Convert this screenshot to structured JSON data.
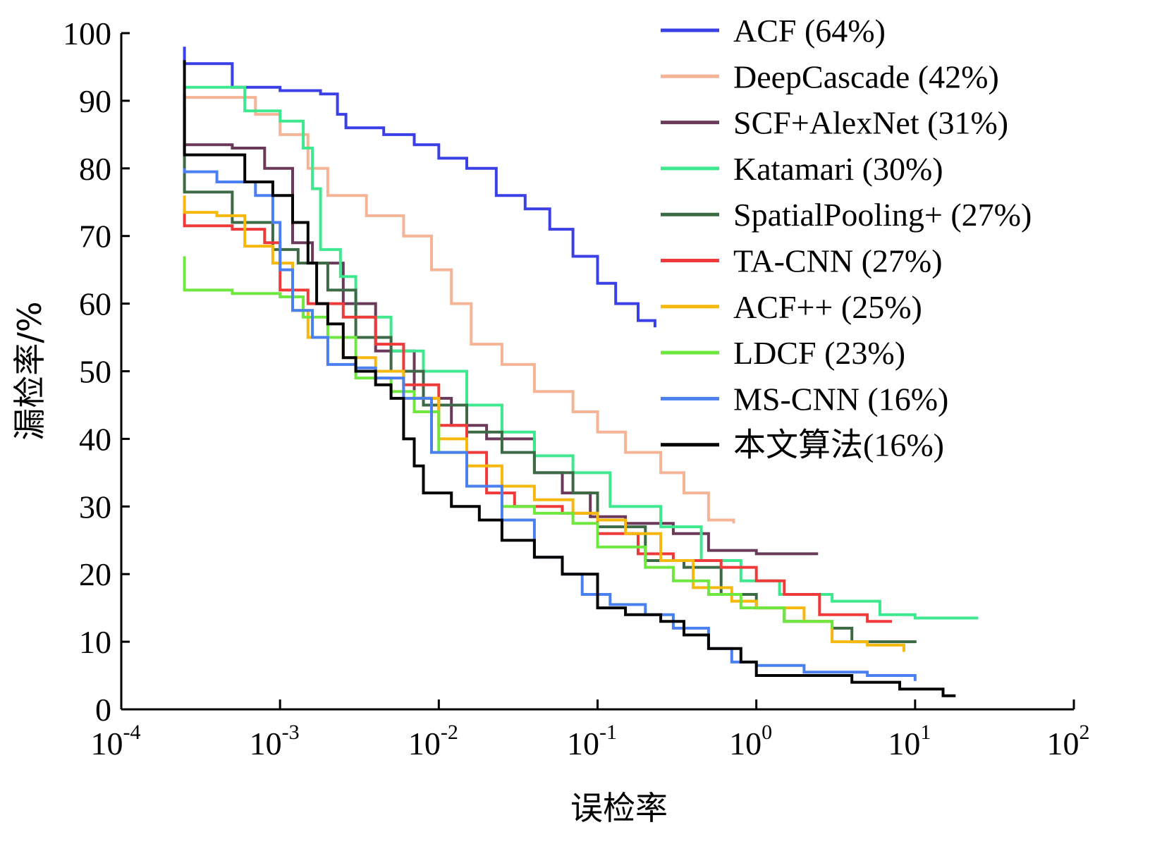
{
  "chart_data": {
    "type": "line",
    "title": "",
    "xlabel": "误检率",
    "ylabel": "漏检率/%",
    "xscale": "log",
    "xlim": [
      0.0001,
      100
    ],
    "ylim": [
      0,
      100
    ],
    "grid": false,
    "legend_position": "top-right",
    "x_ticks": [
      {
        "base": "10",
        "exp": "-4",
        "value": 0.0001
      },
      {
        "base": "10",
        "exp": "-3",
        "value": 0.001
      },
      {
        "base": "10",
        "exp": "-2",
        "value": 0.01
      },
      {
        "base": "10",
        "exp": "-1",
        "value": 0.1
      },
      {
        "base": "10",
        "exp": "0",
        "value": 1
      },
      {
        "base": "10",
        "exp": "1",
        "value": 10
      },
      {
        "base": "10",
        "exp": "2",
        "value": 100
      }
    ],
    "y_ticks": [
      "0",
      "10",
      "20",
      "30",
      "40",
      "50",
      "60",
      "70",
      "80",
      "90",
      "100"
    ],
    "series": [
      {
        "name": "ACF (64%)",
        "color": "#3a3fe6",
        "points": [
          [
            0.00025,
            98
          ],
          [
            0.00025,
            95.5
          ],
          [
            0.0005,
            95.5
          ],
          [
            0.0005,
            92
          ],
          [
            0.001,
            91.5
          ],
          [
            0.0018,
            91
          ],
          [
            0.0023,
            88
          ],
          [
            0.0026,
            86
          ],
          [
            0.0045,
            85
          ],
          [
            0.007,
            83.5
          ],
          [
            0.01,
            81.5
          ],
          [
            0.015,
            80
          ],
          [
            0.023,
            76
          ],
          [
            0.035,
            74
          ],
          [
            0.05,
            71
          ],
          [
            0.07,
            67
          ],
          [
            0.1,
            63
          ],
          [
            0.13,
            60
          ],
          [
            0.18,
            57.5
          ],
          [
            0.23,
            56.5
          ]
        ]
      },
      {
        "name": "DeepCascade (42%)",
        "color": "#f5b496",
        "points": [
          [
            0.00025,
            91
          ],
          [
            0.00025,
            90.5
          ],
          [
            0.0007,
            88
          ],
          [
            0.001,
            85
          ],
          [
            0.0015,
            80
          ],
          [
            0.002,
            76
          ],
          [
            0.0035,
            73
          ],
          [
            0.006,
            70
          ],
          [
            0.009,
            65
          ],
          [
            0.012,
            60
          ],
          [
            0.016,
            54
          ],
          [
            0.025,
            51
          ],
          [
            0.04,
            47
          ],
          [
            0.07,
            44
          ],
          [
            0.1,
            41
          ],
          [
            0.15,
            38
          ],
          [
            0.25,
            35
          ],
          [
            0.35,
            32
          ],
          [
            0.5,
            28
          ],
          [
            0.72,
            27.5
          ]
        ]
      },
      {
        "name": "SCF+AlexNet (31%)",
        "color": "#6b3a5a",
        "points": [
          [
            0.00025,
            89
          ],
          [
            0.00025,
            83.5
          ],
          [
            0.0005,
            83
          ],
          [
            0.0008,
            80
          ],
          [
            0.0012,
            69
          ],
          [
            0.0016,
            66
          ],
          [
            0.0025,
            60
          ],
          [
            0.004,
            53
          ],
          [
            0.007,
            46
          ],
          [
            0.012,
            42
          ],
          [
            0.02,
            40
          ],
          [
            0.04,
            35
          ],
          [
            0.06,
            32
          ],
          [
            0.09,
            28.5
          ],
          [
            0.15,
            27.5
          ],
          [
            0.3,
            26
          ],
          [
            0.5,
            23.5
          ],
          [
            1,
            23
          ],
          [
            2.4,
            22.8
          ]
        ]
      },
      {
        "name": "Katamari (30%)",
        "color": "#3ee88e",
        "points": [
          [
            0.00025,
            92
          ],
          [
            0.0005,
            92
          ],
          [
            0.0006,
            88.5
          ],
          [
            0.001,
            87
          ],
          [
            0.0014,
            83
          ],
          [
            0.0016,
            77
          ],
          [
            0.0018,
            68
          ],
          [
            0.0024,
            64
          ],
          [
            0.003,
            58
          ],
          [
            0.005,
            53
          ],
          [
            0.008,
            50
          ],
          [
            0.015,
            45
          ],
          [
            0.025,
            41
          ],
          [
            0.04,
            37.5
          ],
          [
            0.07,
            35
          ],
          [
            0.12,
            30
          ],
          [
            0.25,
            27
          ],
          [
            0.45,
            22
          ],
          [
            0.8,
            19
          ],
          [
            1.4,
            17
          ],
          [
            3,
            16
          ],
          [
            6,
            14
          ],
          [
            10,
            13.5
          ],
          [
            25,
            13.5
          ]
        ]
      },
      {
        "name": "SpatialPooling+ (27%)",
        "color": "#3c6a45",
        "points": [
          [
            0.00025,
            91
          ],
          [
            0.00025,
            76.5
          ],
          [
            0.0005,
            72
          ],
          [
            0.0009,
            68
          ],
          [
            0.0013,
            66
          ],
          [
            0.002,
            62
          ],
          [
            0.003,
            55
          ],
          [
            0.005,
            50
          ],
          [
            0.008,
            45
          ],
          [
            0.015,
            41
          ],
          [
            0.025,
            38
          ],
          [
            0.04,
            35
          ],
          [
            0.07,
            32
          ],
          [
            0.1,
            27
          ],
          [
            0.2,
            22
          ],
          [
            0.35,
            21
          ],
          [
            0.6,
            17
          ],
          [
            1,
            15
          ],
          [
            1.5,
            13
          ],
          [
            3,
            12
          ],
          [
            4,
            10
          ],
          [
            10,
            9.8
          ]
        ]
      },
      {
        "name": "TA-CNN (27%)",
        "color": "#f03a3a",
        "points": [
          [
            0.00025,
            74
          ],
          [
            0.00025,
            71.5
          ],
          [
            0.0005,
            71
          ],
          [
            0.0008,
            69
          ],
          [
            0.001,
            62
          ],
          [
            0.0015,
            60
          ],
          [
            0.0025,
            58
          ],
          [
            0.004,
            54
          ],
          [
            0.006,
            48
          ],
          [
            0.01,
            42
          ],
          [
            0.015,
            38
          ],
          [
            0.02,
            32
          ],
          [
            0.03,
            30
          ],
          [
            0.06,
            29
          ],
          [
            0.1,
            26
          ],
          [
            0.18,
            23
          ],
          [
            0.3,
            22
          ],
          [
            0.6,
            21
          ],
          [
            1,
            19
          ],
          [
            1.5,
            17
          ],
          [
            2.5,
            14
          ],
          [
            5,
            13
          ],
          [
            7,
            12.8
          ]
        ]
      },
      {
        "name": "ACF++ (25%)",
        "color": "#f7b80e",
        "points": [
          [
            0.00025,
            76
          ],
          [
            0.00025,
            73.5
          ],
          [
            0.0004,
            73
          ],
          [
            0.0006,
            68.5
          ],
          [
            0.0009,
            66
          ],
          [
            0.0012,
            59
          ],
          [
            0.0015,
            55
          ],
          [
            0.0025,
            52
          ],
          [
            0.004,
            50
          ],
          [
            0.006,
            46
          ],
          [
            0.01,
            40
          ],
          [
            0.015,
            36
          ],
          [
            0.025,
            33
          ],
          [
            0.04,
            31
          ],
          [
            0.07,
            29
          ],
          [
            0.1,
            28
          ],
          [
            0.15,
            26
          ],
          [
            0.25,
            22
          ],
          [
            0.4,
            18
          ],
          [
            0.7,
            16
          ],
          [
            1,
            15
          ],
          [
            2,
            13
          ],
          [
            3,
            10
          ],
          [
            5,
            9.5
          ],
          [
            8.5,
            8.5
          ]
        ]
      },
      {
        "name": "LDCF (23%)",
        "color": "#6ee83f",
        "points": [
          [
            0.00025,
            67
          ],
          [
            0.00025,
            62
          ],
          [
            0.0005,
            61.5
          ],
          [
            0.001,
            61
          ],
          [
            0.0014,
            58
          ],
          [
            0.002,
            55
          ],
          [
            0.003,
            49
          ],
          [
            0.005,
            47
          ],
          [
            0.007,
            44
          ],
          [
            0.01,
            38
          ],
          [
            0.015,
            33
          ],
          [
            0.025,
            30
          ],
          [
            0.04,
            29
          ],
          [
            0.07,
            27.5
          ],
          [
            0.1,
            24
          ],
          [
            0.2,
            21
          ],
          [
            0.3,
            19
          ],
          [
            0.5,
            17
          ],
          [
            0.8,
            15
          ],
          [
            1.5,
            13
          ],
          [
            3,
            12
          ]
        ]
      },
      {
        "name": "MS-CNN (16%)",
        "color": "#4a7ff0",
        "points": [
          [
            0.00025,
            80
          ],
          [
            0.00025,
            79.5
          ],
          [
            0.0004,
            78
          ],
          [
            0.0007,
            76
          ],
          [
            0.0009,
            72
          ],
          [
            0.001,
            65
          ],
          [
            0.0012,
            59
          ],
          [
            0.0016,
            55
          ],
          [
            0.002,
            51
          ],
          [
            0.003,
            50.5
          ],
          [
            0.004,
            49
          ],
          [
            0.006,
            46
          ],
          [
            0.009,
            38
          ],
          [
            0.015,
            33
          ],
          [
            0.025,
            28
          ],
          [
            0.04,
            22.5
          ],
          [
            0.06,
            20
          ],
          [
            0.08,
            17
          ],
          [
            0.12,
            15.5
          ],
          [
            0.2,
            14
          ],
          [
            0.3,
            12
          ],
          [
            0.5,
            9
          ],
          [
            0.7,
            7
          ],
          [
            1,
            6.5
          ],
          [
            2,
            5.5
          ],
          [
            5,
            5
          ],
          [
            10,
            4.2
          ]
        ]
      },
      {
        "name": "本文算法(16%)",
        "color": "#000000",
        "points": [
          [
            0.00025,
            96
          ],
          [
            0.00025,
            82
          ],
          [
            0.0005,
            82
          ],
          [
            0.0006,
            78
          ],
          [
            0.0009,
            76
          ],
          [
            0.0012,
            72
          ],
          [
            0.0015,
            66
          ],
          [
            0.0017,
            60
          ],
          [
            0.002,
            57
          ],
          [
            0.0025,
            52
          ],
          [
            0.003,
            50
          ],
          [
            0.004,
            48
          ],
          [
            0.005,
            46
          ],
          [
            0.006,
            40
          ],
          [
            0.007,
            36
          ],
          [
            0.008,
            32
          ],
          [
            0.012,
            30
          ],
          [
            0.018,
            28
          ],
          [
            0.025,
            25
          ],
          [
            0.04,
            22.5
          ],
          [
            0.06,
            20
          ],
          [
            0.1,
            15
          ],
          [
            0.15,
            14
          ],
          [
            0.25,
            13
          ],
          [
            0.35,
            11
          ],
          [
            0.5,
            9
          ],
          [
            0.8,
            7
          ],
          [
            1,
            5
          ],
          [
            2,
            5
          ],
          [
            4,
            4
          ],
          [
            8,
            3
          ],
          [
            15,
            2
          ],
          [
            18,
            2
          ]
        ]
      }
    ]
  }
}
